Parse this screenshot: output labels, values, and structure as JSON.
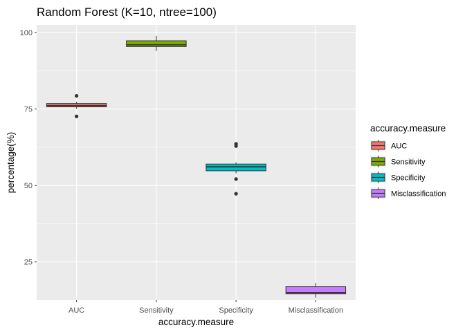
{
  "chart_data": {
    "type": "boxplot",
    "title": "Random Forest (K=10, ntree=100)",
    "xlabel": "accuracy.measure",
    "ylabel": "percentage(%)",
    "categories": [
      "AUC",
      "Sensitivity",
      "Specificity",
      "Misclassification"
    ],
    "ylim": [
      12.5,
      102.5
    ],
    "yticks": [
      25,
      50,
      75,
      100
    ],
    "grid": true,
    "legend": {
      "title": "accuracy.measure",
      "placement": "right",
      "entries": [
        "AUC",
        "Sensitivity",
        "Specificity",
        "Misclassification"
      ]
    },
    "colors": [
      "#F8766D",
      "#7CAE00",
      "#00BFC4",
      "#C77CFF"
    ],
    "boxes": [
      {
        "category": "AUC",
        "q1": 75.7,
        "median": 76.1,
        "q3": 76.8,
        "whisker_low": 75.1,
        "whisker_high": 77.4,
        "outliers": [
          79.3,
          72.6
        ]
      },
      {
        "category": "Sensitivity",
        "q1": 95.4,
        "median": 96.0,
        "q3": 97.3,
        "whisker_low": 94.0,
        "whisker_high": 98.9,
        "outliers": []
      },
      {
        "category": "Specificity",
        "q1": 54.8,
        "median": 56.1,
        "q3": 57.0,
        "whisker_low": 54.0,
        "whisker_high": 57.6,
        "outliers": [
          63.6,
          62.9,
          52.1,
          47.3
        ]
      },
      {
        "category": "Misclassification",
        "q1": 14.6,
        "median": 15.0,
        "q3": 16.9,
        "whisker_low": 13.3,
        "whisker_high": 18.1,
        "outliers": []
      }
    ]
  }
}
